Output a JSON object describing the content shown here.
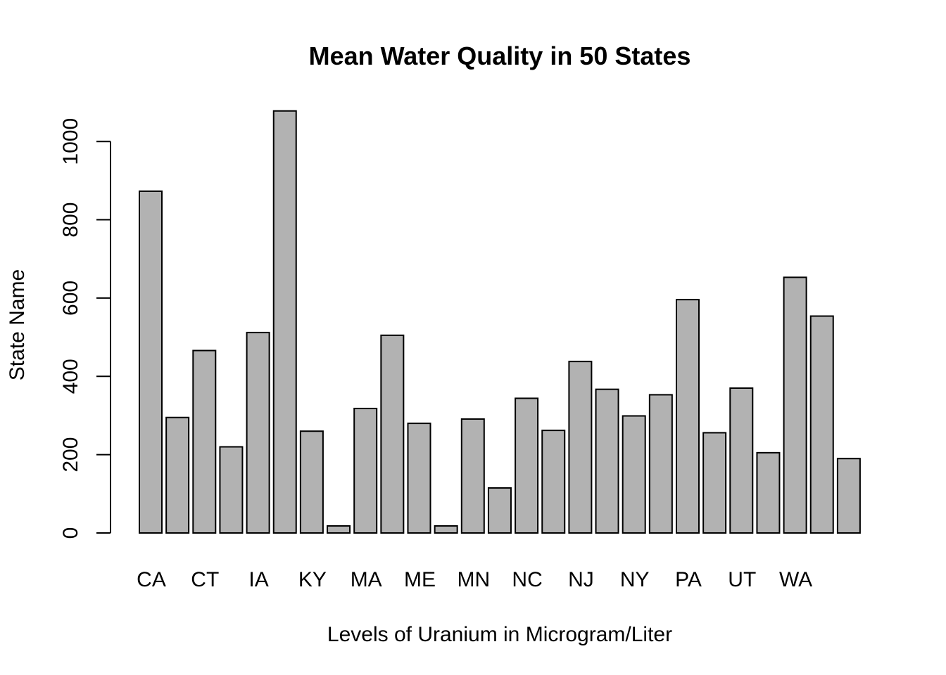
{
  "chart_data": {
    "type": "bar",
    "title": "Mean Water Quality in 50 States",
    "xlabel": "Levels of Uranium in Microgram/Liter",
    "ylabel": "State Name",
    "categories": [
      "CA",
      "",
      "CT",
      "",
      "IA",
      "",
      "KY",
      "",
      "MA",
      "",
      "ME",
      "",
      "MN",
      "",
      "NC",
      "",
      "NJ",
      "",
      "NY",
      "",
      "PA",
      "",
      "UT",
      "",
      "WA",
      "",
      ""
    ],
    "values": [
      873,
      295,
      466,
      220,
      512,
      1078,
      260,
      18,
      318,
      505,
      280,
      18,
      291,
      115,
      344,
      262,
      438,
      367,
      299,
      353,
      596,
      256,
      370,
      205,
      653,
      554,
      190
    ],
    "yticks": [
      0,
      200,
      400,
      600,
      800,
      1000
    ],
    "ylim": [
      0,
      1080
    ],
    "bar_color": "#b2b2b2",
    "grid": false,
    "legend": "none"
  }
}
